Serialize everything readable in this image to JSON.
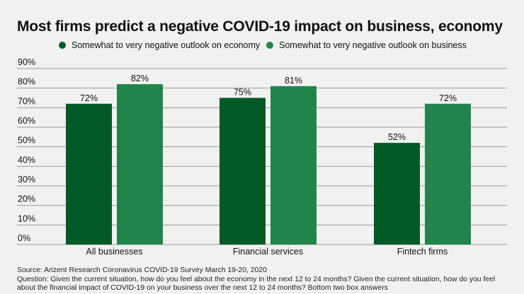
{
  "chart_data": {
    "type": "bar",
    "title": "Most firms predict a negative COVID-19 impact on business, economy",
    "xlabel": "",
    "ylabel": "",
    "ylim": [
      0,
      90
    ],
    "yticks": [
      0,
      10,
      20,
      30,
      40,
      50,
      60,
      70,
      80,
      90
    ],
    "ytick_labels": [
      "0%",
      "10%",
      "20%",
      "30%",
      "40%",
      "50%",
      "60%",
      "70%",
      "80%",
      "90%"
    ],
    "grid": true,
    "legend_position": "top",
    "categories": [
      "All businesses",
      "Financial services",
      "Fintech firms"
    ],
    "series": [
      {
        "name": "Somewhat to very negative outlook on economy",
        "color": "#025a26",
        "values": [
          72,
          75,
          52
        ],
        "labels": [
          "72%",
          "75%",
          "52%"
        ]
      },
      {
        "name": "Somewhat to very negative outlook on business",
        "color": "#21844b",
        "values": [
          82,
          81,
          72
        ],
        "labels": [
          "82%",
          "81%",
          "72%"
        ]
      }
    ]
  },
  "footer": {
    "source": "Source: Arizent Research Coronavirus COVID-19 Survey March 19-20, 2020",
    "question": "Question: Given the current situation, how do you feel about the economy in the next 12 to 24 months? Given the current situation, how do you feel about the financial impact of COVID-19 on your business over the next 12 to 24 months? Bottom two box answers"
  }
}
